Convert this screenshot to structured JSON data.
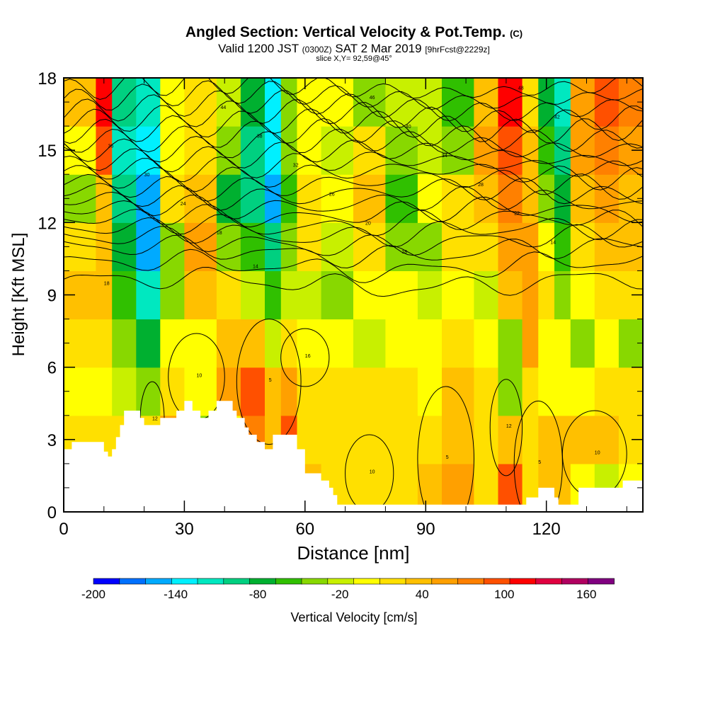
{
  "header": {
    "title": "Angled Section: Vertical Velocity & Pot.Temp.",
    "title_suffix": "(C)",
    "subtitle_prefix": "Valid 1200 JST",
    "subtitle_zulu": "(0300Z)",
    "subtitle_date": "SAT 2 Mar 2019",
    "subtitle_fcst": "[9hrFcst@2229z]",
    "slice": "slice X,Y= 92,59@45°"
  },
  "chart_data": {
    "type": "heatmap",
    "title": "Angled Section: Vertical Velocity & Pot.Temp. (C)",
    "xlabel": "Distance [nm]",
    "ylabel": "Height [Kft MSL]",
    "xlim": [
      0,
      144
    ],
    "ylim": [
      0,
      18
    ],
    "xticks": [
      0,
      30,
      60,
      90,
      120
    ],
    "yticks": [
      0,
      3,
      6,
      9,
      12,
      15,
      18
    ],
    "colorbar": {
      "label": "Vertical Velocity [cm/s]",
      "tick_labels": [
        "-200",
        "-140",
        "-80",
        "-20",
        "40",
        "100",
        "160"
      ],
      "tick_values": [
        -200,
        -140,
        -80,
        -20,
        40,
        100,
        160
      ],
      "range": [
        -200,
        180
      ],
      "colors": [
        "#0000ff",
        "#0070ff",
        "#00aaff",
        "#00f0ff",
        "#00e8c0",
        "#00d080",
        "#00b030",
        "#30c000",
        "#88d800",
        "#c8f000",
        "#ffff00",
        "#ffe000",
        "#ffc000",
        "#ffa000",
        "#ff8000",
        "#ff5000",
        "#ff0000",
        "#e00040",
        "#b00060",
        "#800080"
      ]
    },
    "velocity_cells": [
      {
        "x": 0,
        "w": 8,
        "values": [
          20,
          10,
          0,
          10,
          30,
          10,
          -30,
          -10,
          30
        ]
      },
      {
        "x": 8,
        "w": 4,
        "values": [
          20,
          10,
          0,
          10,
          40,
          30,
          40,
          90,
          110
        ]
      },
      {
        "x": 12,
        "w": 6,
        "values": [
          20,
          10,
          -20,
          -40,
          -60,
          -70,
          -100,
          -110,
          -100
        ]
      },
      {
        "x": 18,
        "w": 6,
        "values": [
          40,
          10,
          -30,
          -70,
          -120,
          -150,
          -150,
          -130,
          -120
        ]
      },
      {
        "x": 24,
        "w": 6,
        "values": [
          20,
          60,
          20,
          -10,
          -30,
          -30,
          20,
          0,
          -10
        ]
      },
      {
        "x": 30,
        "w": 8,
        "values": [
          10,
          -30,
          0,
          0,
          40,
          50,
          30,
          20,
          10
        ]
      },
      {
        "x": 38,
        "w": 6,
        "values": [
          10,
          0,
          60,
          30,
          20,
          -30,
          -80,
          -40,
          -20
        ]
      },
      {
        "x": 44,
        "w": 6,
        "values": [
          50,
          80,
          100,
          40,
          -20,
          -60,
          -100,
          -90,
          -80
        ]
      },
      {
        "x": 50,
        "w": 4,
        "values": [
          30,
          40,
          40,
          -20,
          -60,
          -100,
          -150,
          -140,
          -130
        ]
      },
      {
        "x": 54,
        "w": 4,
        "values": [
          60,
          100,
          60,
          10,
          -20,
          -40,
          -60,
          -40,
          -30
        ]
      },
      {
        "x": 58,
        "w": 6,
        "values": [
          30,
          20,
          10,
          0,
          -20,
          10,
          10,
          0,
          -10
        ]
      },
      {
        "x": 64,
        "w": 8,
        "values": [
          20,
          20,
          10,
          -10,
          -30,
          -20,
          -10,
          -20,
          -10
        ]
      },
      {
        "x": 72,
        "w": 8,
        "values": [
          10,
          20,
          10,
          -20,
          0,
          20,
          30,
          10,
          -30
        ]
      },
      {
        "x": 80,
        "w": 8,
        "values": [
          20,
          20,
          20,
          0,
          -10,
          -30,
          -50,
          -40,
          -20
        ]
      },
      {
        "x": 88,
        "w": 6,
        "values": [
          30,
          20,
          0,
          -10,
          -20,
          -30,
          -10,
          -20,
          -20
        ]
      },
      {
        "x": 94,
        "w": 8,
        "values": [
          60,
          40,
          30,
          10,
          -10,
          10,
          20,
          -30,
          -60
        ]
      },
      {
        "x": 102,
        "w": 6,
        "values": [
          20,
          10,
          10,
          -10,
          -20,
          10,
          30,
          60,
          40
        ]
      },
      {
        "x": 108,
        "w": 6,
        "values": [
          90,
          30,
          -30,
          -40,
          40,
          60,
          80,
          100,
          120
        ]
      },
      {
        "x": 114,
        "w": 4,
        "values": [
          10,
          10,
          20,
          50,
          60,
          50,
          40,
          30,
          20
        ]
      },
      {
        "x": 118,
        "w": 4,
        "values": [
          30,
          30,
          0,
          -10,
          10,
          0,
          -30,
          -60,
          -80
        ]
      },
      {
        "x": 122,
        "w": 4,
        "values": [
          30,
          40,
          0,
          -10,
          -40,
          -60,
          -80,
          -100,
          -120
        ]
      },
      {
        "x": 126,
        "w": 6,
        "values": [
          -10,
          40,
          0,
          -30,
          -10,
          10,
          30,
          50,
          60
        ]
      },
      {
        "x": 132,
        "w": 6,
        "values": [
          -20,
          30,
          20,
          0,
          20,
          40,
          50,
          70,
          100
        ]
      },
      {
        "x": 138,
        "w": 6,
        "values": [
          -10,
          20,
          10,
          -30,
          10,
          30,
          40,
          60,
          80
        ]
      }
    ],
    "terrain": [
      [
        0,
        2.6
      ],
      [
        2,
        2.9
      ],
      [
        8,
        2.9
      ],
      [
        10,
        2.5
      ],
      [
        11,
        2.3
      ],
      [
        12,
        2.6
      ],
      [
        13,
        3.1
      ],
      [
        14,
        3.6
      ],
      [
        15,
        4.2
      ],
      [
        18,
        4.2
      ],
      [
        19,
        3.9
      ],
      [
        20,
        3.6
      ],
      [
        23,
        3.6
      ],
      [
        24,
        3.9
      ],
      [
        26,
        3.9
      ],
      [
        28,
        4.2
      ],
      [
        30,
        4.6
      ],
      [
        32,
        4.2
      ],
      [
        34,
        3.9
      ],
      [
        36,
        4.2
      ],
      [
        38,
        4.6
      ],
      [
        41,
        4.6
      ],
      [
        42,
        4.2
      ],
      [
        43,
        3.9
      ],
      [
        45,
        3.5
      ],
      [
        46,
        3.2
      ],
      [
        48,
        2.9
      ],
      [
        50,
        2.6
      ],
      [
        52,
        3.2
      ],
      [
        56,
        3.2
      ],
      [
        58,
        2.6
      ],
      [
        60,
        1.6
      ],
      [
        63,
        1.6
      ],
      [
        64,
        1.3
      ],
      [
        66,
        1.0
      ],
      [
        67,
        0.7
      ],
      [
        68,
        0.3
      ],
      [
        80,
        0.3
      ],
      [
        90,
        0.3
      ],
      [
        102,
        0.3
      ],
      [
        114,
        0.3
      ],
      [
        115,
        0.6
      ],
      [
        118,
        1.0
      ],
      [
        120,
        1.0
      ],
      [
        122,
        0.6
      ],
      [
        123,
        0.3
      ],
      [
        127,
        0.3
      ],
      [
        128,
        1.0
      ],
      [
        138,
        1.0
      ],
      [
        139,
        1.3
      ],
      [
        144,
        1.3
      ]
    ],
    "isentrope_levels": [
      9.5,
      10.2,
      10.8,
      11.2,
      11.6,
      12.0,
      12.4,
      12.8,
      13.2,
      13.6,
      14.0,
      14.4,
      14.8,
      15.2,
      15.6,
      16.0,
      16.4,
      16.8,
      17.2,
      17.6
    ],
    "isentrope_labels": [
      "18",
      "14",
      "18",
      "14",
      "18",
      "20",
      "22",
      "24",
      "26",
      "28",
      "30",
      "32",
      "34",
      "36",
      "38",
      "40",
      "42",
      "44",
      "46",
      "48"
    ],
    "lower_contour_labels": [
      "12",
      "10",
      "5",
      "10",
      "5",
      "5",
      "10",
      "12",
      "16"
    ]
  }
}
